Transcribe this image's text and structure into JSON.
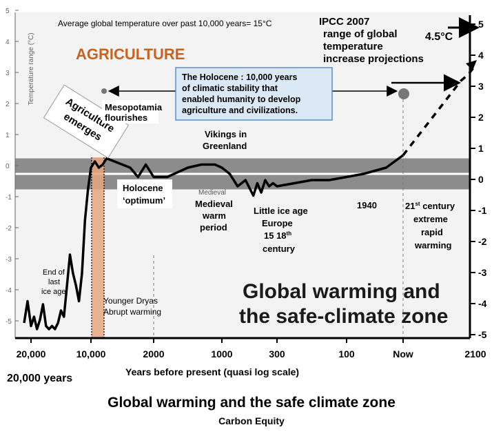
{
  "chart_data": {
    "type": "line",
    "title": "Global warming and the safe-climate zone",
    "xlabel": "Years before present (quasi log scale)",
    "ylabel": "Temperature range (°C)",
    "ylim": [
      -5,
      5
    ],
    "x_ticks": [
      "20,000",
      "10,000",
      "2000",
      "1000",
      "300",
      "100",
      "Now",
      "2100"
    ],
    "x_extra_label": "20,000 years",
    "y_ticks_left": [
      "5",
      "4",
      "3",
      "2",
      "1",
      "0",
      "-1",
      "-2",
      "-3",
      "-4",
      "-5"
    ],
    "y_ticks_right": [
      "5",
      "4",
      "3",
      "2",
      "1",
      "0",
      "-1",
      "-2",
      "-3",
      "-4",
      "-5"
    ],
    "safe_zone_band": [
      -0.5,
      0.5
    ],
    "series": [
      {
        "x": [
          21000,
          20500,
          20000,
          19500,
          19000,
          18500,
          18000,
          17500,
          17000,
          16500,
          16000,
          15500,
          15000,
          14500,
          14000,
          13500,
          13000,
          12500,
          12000,
          11500,
          11000,
          10500,
          10000,
          9500,
          9000,
          8500,
          8000,
          7000,
          6000,
          5000,
          4000,
          3000,
          2500,
          2000,
          1800,
          1500,
          1300,
          1100,
          1000,
          900,
          800,
          700,
          600,
          550,
          500,
          450,
          400,
          350,
          300,
          250,
          200,
          150,
          100,
          70,
          50,
          30,
          0
        ],
        "y": [
          -4.8,
          -4.1,
          -4.9,
          -4.6,
          -5.0,
          -4.7,
          -4.2,
          -4.9,
          -5.0,
          -4.9,
          -5.0,
          -4.8,
          -4.4,
          -4.6,
          -3.6,
          -2.6,
          -3.2,
          -3.6,
          -4.1,
          -3.2,
          -1.5,
          -0.5,
          0.2,
          0.4,
          0.2,
          0.3,
          0.5,
          0.4,
          0.3,
          0.2,
          -0.1,
          0.3,
          0.1,
          -0.1,
          -0.1,
          0.2,
          0.3,
          0.3,
          0.2,
          0.0,
          -0.4,
          -0.2,
          -0.7,
          -0.3,
          -0.6,
          -0.2,
          -0.4,
          -0.3,
          -0.4,
          -0.3,
          -0.2,
          -0.2,
          -0.1,
          0.0,
          0.1,
          0.2,
          0.6
        ]
      },
      {
        "name": "IPCC 2007 range of global temperature increase projections",
        "style": "dashed",
        "x": [
          0,
          10,
          20,
          30,
          40,
          50,
          60,
          70,
          80,
          90,
          100
        ],
        "y": [
          0.6,
          0.9,
          1.2,
          1.5,
          1.8,
          2.1,
          2.4,
          2.7,
          3.0,
          3.2,
          3.5
        ]
      }
    ],
    "annotations": [
      "Average global temperature over past 10,000 years= 15°C",
      "AGRICULTURE",
      "IPCC 2007",
      "range of global",
      "temperature",
      "increase projections",
      "4.5°C",
      "The Holocene : 10,000 years",
      "of climatic stability that",
      "enabled humanity to develop",
      "agriculture and civilizations.",
      "Agriculture",
      "emerges",
      "Mesopotamia",
      "flourishes",
      "Vikings in",
      "Greenland",
      "Holocene",
      "‘optimum’",
      "Medieval",
      "Medieval",
      "warm",
      "period",
      "Little ice age",
      "Europe",
      "15 18",
      "th",
      "century",
      "1940",
      "21",
      "st",
      " century",
      "extreme",
      "rapid",
      "warming",
      "End of",
      "last",
      "ice age",
      "Younger Dryas",
      "Abrupt warming",
      "Global warming and",
      "the safe-climate zone"
    ],
    "colors": {
      "line": "#000000",
      "band": "#8c8c8c",
      "agriculture_bar": "#e6a77f",
      "agriculture_text": "#c8621e",
      "holocene_box_fill": "#dbe8f5",
      "holocene_box_border": "#5b8ec9"
    }
  },
  "caption": {
    "title": "Global warming and the safe climate zone",
    "subtitle": "Carbon Equity"
  }
}
